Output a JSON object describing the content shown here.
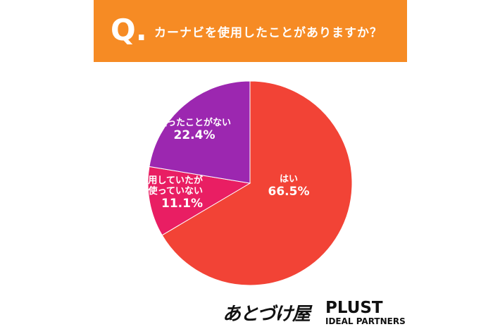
{
  "chart_data": {
    "type": "pie",
    "question_mark": "Q.",
    "title": "カーナビを使用したことがありますか？",
    "categories": [
      "はい",
      "以前は使用していたが今は使っていない",
      "使ったことがない"
    ],
    "values": [
      66.5,
      11.1,
      22.4
    ],
    "value_labels": [
      "66.5%",
      "11.1%",
      "22.4%"
    ],
    "colors": [
      "#f24336",
      "#e91e63",
      "#9c27b0"
    ],
    "start_angle": 0,
    "direction": "clockwise"
  },
  "logos": {
    "brand": "あとづけ屋",
    "partner": "PLUST",
    "partner_sub": "IDEAL PARTNERS"
  }
}
